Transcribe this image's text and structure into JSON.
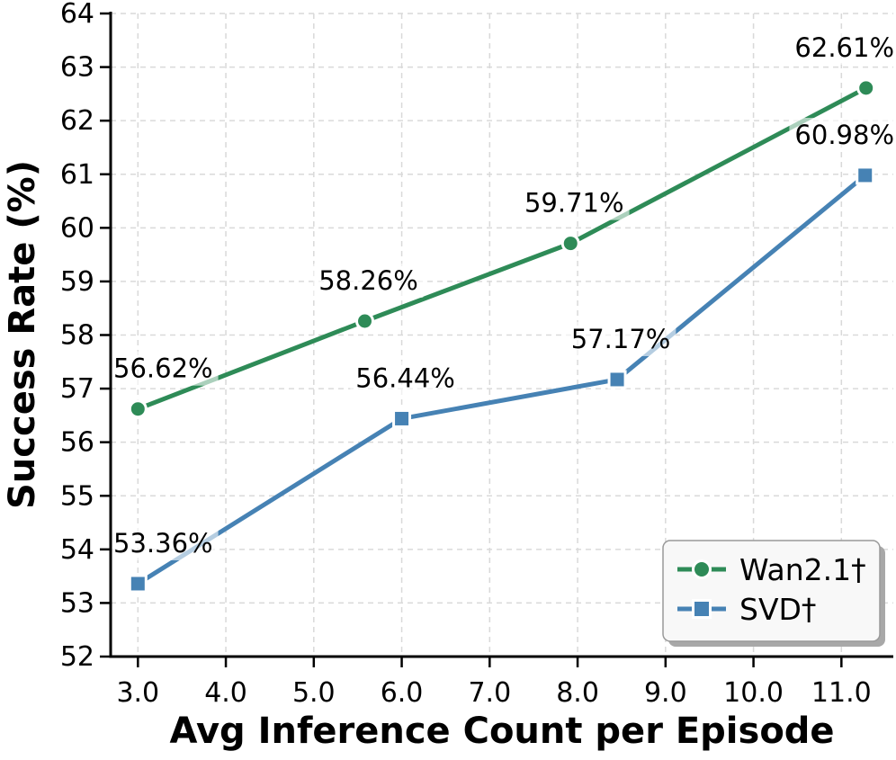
{
  "chart_data": {
    "type": "line",
    "title": "",
    "xlabel": "Avg Inference Count per Episode",
    "ylabel": "Success Rate (%)",
    "xlim": [
      2.69,
      11.59
    ],
    "ylim": [
      52,
      64
    ],
    "x_ticks": [
      3,
      4,
      5,
      6,
      7,
      8,
      9,
      10,
      11
    ],
    "x_tick_labels": [
      "3.0",
      "4.0",
      "5.0",
      "6.0",
      "7.0",
      "8.0",
      "9.0",
      "10.0",
      "11.0"
    ],
    "y_ticks": [
      52,
      53,
      54,
      55,
      56,
      57,
      58,
      59,
      60,
      61,
      62,
      63,
      64
    ],
    "y_tick_labels": [
      "52",
      "53",
      "54",
      "55",
      "56",
      "57",
      "58",
      "59",
      "60",
      "61",
      "62",
      "63",
      "64"
    ],
    "grid": true,
    "grid_style": "dashed",
    "legend_position": "lower right",
    "series": [
      {
        "name": "Wan2.1†",
        "color": "#2e8b57",
        "marker": "circle",
        "x": [
          3.0,
          5.58,
          7.92,
          11.28
        ],
        "y": [
          56.62,
          58.26,
          59.71,
          62.61
        ],
        "point_labels": [
          "56.62%",
          "58.26%",
          "59.71%",
          "62.61%"
        ]
      },
      {
        "name": "SVD†",
        "color": "#4682b4",
        "marker": "square",
        "x": [
          3.0,
          6.0,
          8.45,
          11.27
        ],
        "y": [
          53.36,
          56.44,
          57.17,
          60.98
        ],
        "point_labels": [
          "53.36%",
          "56.44%",
          "57.17%",
          "60.98%"
        ]
      }
    ],
    "style_colors": {
      "grid": "#d9d9d9",
      "axis": "#000000",
      "label_box": "#ffffff",
      "legend_bg": "#f8f8f8",
      "legend_border": "#999999",
      "legend_shadow": "#a8a8a8",
      "marker_edge": "#ffffff"
    }
  }
}
